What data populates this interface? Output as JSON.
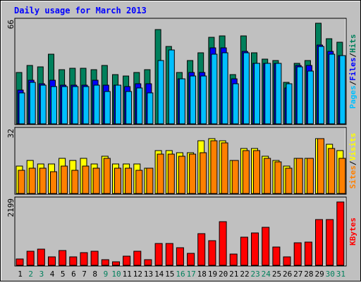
{
  "chart_data": {
    "type": "bar",
    "title": "Daily usage for March 2013",
    "categories": [
      "1",
      "2",
      "3",
      "4",
      "5",
      "6",
      "7",
      "8",
      "9",
      "10",
      "11",
      "12",
      "13",
      "14",
      "15",
      "16",
      "17",
      "18",
      "19",
      "20",
      "21",
      "22",
      "23",
      "24",
      "25",
      "26",
      "27",
      "28",
      "29",
      "30",
      "31"
    ],
    "weekend_days": [
      "2",
      "3",
      "9",
      "10",
      "16",
      "17",
      "23",
      "24",
      "30",
      "31"
    ],
    "panels": [
      {
        "name": "hits-files-pages",
        "ymax_label": "66",
        "ylim": [
          0,
          66
        ],
        "legend": [
          "Pages",
          "/",
          "Files",
          "/",
          "Hits"
        ],
        "series": [
          {
            "name": "Hits",
            "color": "#00805c",
            "values": [
              33,
              38,
              37,
              45,
              35,
              36,
              36,
              35,
              38,
              32,
              31,
              33,
              35,
              61,
              50,
              33,
              41,
              46,
              56,
              57,
              32,
              57,
              46,
              42,
              41,
              27,
              39,
              41,
              65,
              55,
              53
            ]
          },
          {
            "name": "Files",
            "color": "#0000ff",
            "values": [
              22,
              28,
              26,
              28,
              25,
              25,
              25,
              28,
              25,
              25,
              24,
              26,
              26,
              0,
              0,
              29,
              33,
              33,
              49,
              49,
              29,
              47,
              39,
              39,
              39,
              23,
              38,
              38,
              51,
              47,
              44
            ]
          },
          {
            "name": "Pages",
            "color": "#00bfff",
            "values": [
              20,
              27,
              25,
              24,
              24,
              24,
              24,
              25,
              21,
              25,
              21,
              23,
              20,
              41,
              48,
              29,
              31,
              31,
              45,
              46,
              26,
              46,
              39,
              39,
              39,
              26,
              37,
              34,
              50,
              45,
              44
            ]
          }
        ]
      },
      {
        "name": "visits-sites",
        "ymax_label": "32",
        "ylim": [
          0,
          32
        ],
        "legend": [
          "Sites",
          "/",
          "Visits"
        ],
        "series": [
          {
            "name": "Visits",
            "color": "#ffff00",
            "values": [
              14,
              17,
              15,
              15,
              18,
              17,
              18,
              15,
              19,
              15,
              15,
              15,
              13,
              22,
              22,
              21,
              21,
              27,
              28,
              27,
              17,
              23,
              23,
              19,
              17,
              14,
              18,
              18,
              28,
              25,
              22
            ]
          },
          {
            "name": "Sites",
            "color": "#ff8000",
            "values": [
              12,
              13,
              13,
              11,
              14,
              12,
              14,
              13,
              18,
              13,
              13,
              12,
              13,
              20,
              20,
              19,
              20,
              21,
              27,
              26,
              17,
              22,
              22,
              18,
              16,
              13,
              18,
              18,
              28,
              23,
              18
            ]
          }
        ]
      },
      {
        "name": "kbytes",
        "ymax_label": "2199",
        "ylim": [
          0,
          2199
        ],
        "legend": [
          "KBytes"
        ],
        "series": [
          {
            "name": "KBytes",
            "color": "#ff0000",
            "values": [
              220,
              480,
              560,
              290,
              510,
              280,
              420,
              480,
              190,
              120,
              320,
              470,
              200,
              750,
              750,
              590,
              400,
              1080,
              840,
              1470,
              390,
              950,
              1110,
              1300,
              620,
              290,
              760,
              780,
              1560,
              1560,
              2140
            ]
          }
        ]
      }
    ]
  },
  "colors": {
    "background": "#c0c0c0",
    "plot_background": "#c0c0c0",
    "title": "#0000ff",
    "weekday_label": "#000000",
    "weekend_label": "#00805c",
    "legend_separator": "#000000"
  }
}
